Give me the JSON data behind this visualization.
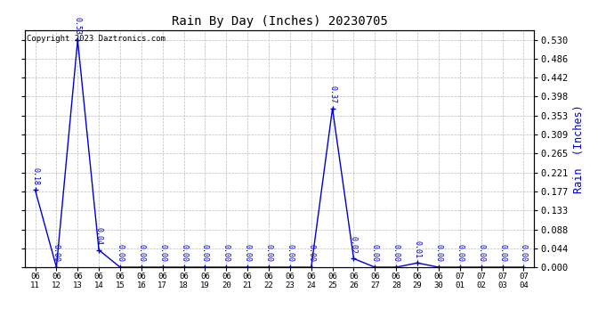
{
  "title": "Rain By Day (Inches) 20230705",
  "ylabel_right": "Rain  (Inches)",
  "copyright_text": "Copyright 2023 Daztronics.com",
  "line_color": "#0000cc",
  "background_color": "#ffffff",
  "grid_color": "#bbbbbb",
  "dates": [
    "06/11",
    "06/12",
    "06/13",
    "06/14",
    "06/15",
    "06/16",
    "06/17",
    "06/18",
    "06/19",
    "06/20",
    "06/21",
    "06/22",
    "06/23",
    "06/24",
    "06/25",
    "06/26",
    "06/27",
    "06/28",
    "06/29",
    "06/30",
    "07/01",
    "07/02",
    "07/03",
    "07/04"
  ],
  "values": [
    0.18,
    0.0,
    0.53,
    0.04,
    0.0,
    0.0,
    0.0,
    0.0,
    0.0,
    0.0,
    0.0,
    0.0,
    0.0,
    0.0,
    0.37,
    0.02,
    0.0,
    0.0,
    0.01,
    0.0,
    0.0,
    0.0,
    0.0,
    0.0
  ],
  "yticks": [
    0.0,
    0.044,
    0.088,
    0.133,
    0.177,
    0.221,
    0.265,
    0.309,
    0.353,
    0.398,
    0.442,
    0.486,
    0.53
  ],
  "ylim": [
    0.0,
    0.553
  ],
  "figsize": [
    6.9,
    3.75
  ],
  "dpi": 100
}
